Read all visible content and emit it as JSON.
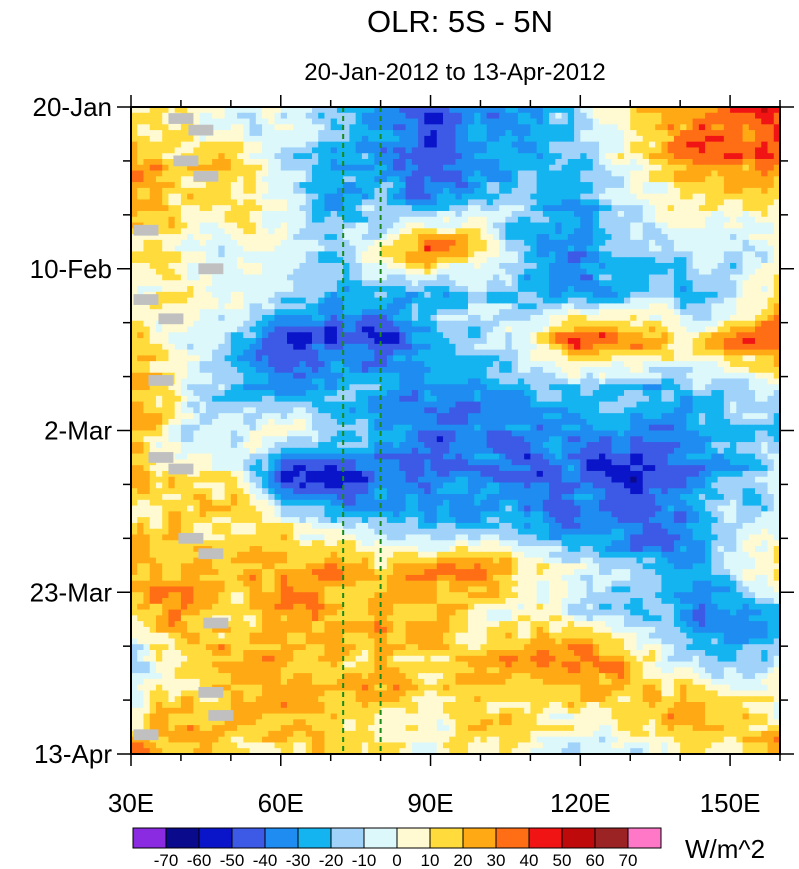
{
  "chart_data": {
    "type": "heatmap",
    "title": "OLR: 5S - 5N",
    "subtitle": "20-Jan-2012 to 13-Apr-2012",
    "units_label": "W/m^2",
    "x_range": [
      30,
      160
    ],
    "x_ticks": [
      {
        "value": 30,
        "label": "30E"
      },
      {
        "value": 60,
        "label": "60E"
      },
      {
        "value": 90,
        "label": "90E"
      },
      {
        "value": 120,
        "label": "120E"
      },
      {
        "value": 150,
        "label": "150E"
      }
    ],
    "y_range_days": [
      0,
      84
    ],
    "y_ticks": [
      {
        "day": 0,
        "label": "20-Jan"
      },
      {
        "day": 21,
        "label": "10-Feb"
      },
      {
        "day": 42,
        "label": "2-Mar"
      },
      {
        "day": 63,
        "label": "23-Mar"
      },
      {
        "day": 84,
        "label": "13-Apr"
      }
    ],
    "reference_longitudes": [
      72.5,
      80
    ],
    "reference_line_color": "#1a8a1a",
    "missing_color": "#c0c0c0",
    "levels": [
      -70,
      -60,
      -50,
      -40,
      -30,
      -20,
      -10,
      0,
      10,
      20,
      30,
      40,
      50,
      60,
      70
    ],
    "level_labels": [
      "-70",
      "-60",
      "-50",
      "-40",
      "-30",
      "-20",
      "-10",
      "0",
      "10",
      "20",
      "30",
      "40",
      "50",
      "60",
      "70"
    ],
    "colors": [
      "#8a2be2",
      "#0a0a8c",
      "#0a14c8",
      "#3c5ae6",
      "#1e8cf0",
      "#14b4f0",
      "#a0d2fa",
      "#dcf8fa",
      "#fffad2",
      "#ffdc3c",
      "#ffaa14",
      "#ff6e14",
      "#f01414",
      "#be0a0a",
      "#9b2323",
      "#ff78c8"
    ],
    "grid_lon": [
      30,
      40,
      50,
      60,
      70,
      80,
      90,
      100,
      110,
      120,
      130,
      140,
      150,
      160
    ],
    "grid_day": [
      0,
      6,
      12,
      18,
      24,
      30,
      36,
      42,
      48,
      54,
      60,
      66,
      72,
      78,
      84
    ],
    "grid_values": [
      [
        5,
        15,
        -10,
        -10,
        -15,
        -30,
        -40,
        -35,
        -30,
        -10,
        10,
        25,
        35,
        45
      ],
      [
        25,
        10,
        15,
        -10,
        -20,
        -35,
        -50,
        -40,
        -25,
        -15,
        10,
        25,
        30,
        30
      ],
      [
        30,
        10,
        15,
        0,
        -30,
        -25,
        -40,
        -30,
        -15,
        -20,
        -10,
        10,
        15,
        10
      ],
      [
        15,
        10,
        -5,
        0,
        -20,
        10,
        30,
        10,
        -30,
        -40,
        -20,
        -10,
        -5,
        0
      ],
      [
        10,
        10,
        0,
        -10,
        -20,
        -15,
        -20,
        -10,
        -25,
        -30,
        -30,
        -20,
        -10,
        15
      ],
      [
        10,
        0,
        -10,
        -40,
        -55,
        -55,
        -25,
        -15,
        10,
        45,
        25,
        10,
        30,
        40
      ],
      [
        25,
        5,
        -20,
        -35,
        -20,
        -30,
        -40,
        -30,
        -20,
        -20,
        -15,
        -20,
        -10,
        -10
      ],
      [
        20,
        0,
        -10,
        5,
        -10,
        -30,
        -45,
        -40,
        -35,
        -40,
        -30,
        -35,
        -25,
        -20
      ],
      [
        20,
        10,
        15,
        -50,
        -60,
        -30,
        -40,
        -30,
        -45,
        -40,
        -50,
        -40,
        -20,
        -10
      ],
      [
        10,
        20,
        10,
        10,
        -10,
        -20,
        -20,
        -20,
        -30,
        -35,
        -45,
        -40,
        -10,
        -5
      ],
      [
        30,
        25,
        20,
        25,
        25,
        25,
        20,
        40,
        10,
        -10,
        -20,
        -30,
        -10,
        20
      ],
      [
        20,
        25,
        15,
        25,
        25,
        25,
        15,
        5,
        10,
        -10,
        -20,
        -30,
        -40,
        -25
      ],
      [
        -20,
        10,
        25,
        25,
        25,
        20,
        10,
        20,
        30,
        30,
        20,
        0,
        -20,
        -10
      ],
      [
        10,
        20,
        20,
        25,
        20,
        20,
        10,
        10,
        5,
        10,
        15,
        25,
        20,
        0
      ],
      [
        30,
        25,
        20,
        15,
        20,
        10,
        0,
        20,
        0,
        -10,
        -5,
        15,
        10,
        30
      ]
    ],
    "missing_cells": [
      {
        "lon": 40,
        "day": 1.5
      },
      {
        "lon": 44,
        "day": 3
      },
      {
        "lon": 41,
        "day": 7
      },
      {
        "lon": 45,
        "day": 9
      },
      {
        "lon": 33,
        "day": 16
      },
      {
        "lon": 46,
        "day": 21
      },
      {
        "lon": 33,
        "day": 25
      },
      {
        "lon": 38,
        "day": 27.5
      },
      {
        "lon": 36,
        "day": 35.5
      },
      {
        "lon": 36,
        "day": 45.5
      },
      {
        "lon": 40,
        "day": 47
      },
      {
        "lon": 42,
        "day": 56
      },
      {
        "lon": 46,
        "day": 58
      },
      {
        "lon": 47,
        "day": 67
      },
      {
        "lon": 46,
        "day": 76
      },
      {
        "lon": 48,
        "day": 79
      },
      {
        "lon": 33,
        "day": 81.5
      }
    ]
  }
}
